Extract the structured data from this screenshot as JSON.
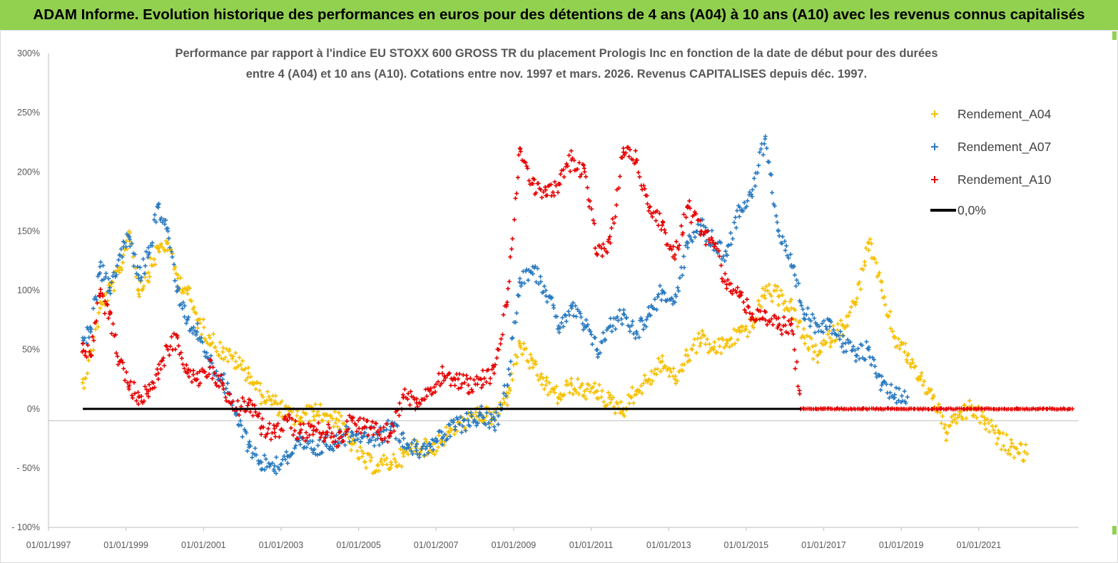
{
  "banner": {
    "title": "ADAM Informe. Evolution historique des performances en euros pour des détentions de 4 ans (A04) à 10 ans (A10) avec les revenus connus capitalisés"
  },
  "chart_data": {
    "type": "scatter",
    "title_line1": "Performance par rapport à l'indice EU STOXX 600 GROSS TR  du placement Prologis Inc en fonction de la date de début pour des durées",
    "title_line2": "entre 4 (A04) et 10 ans (A10). Cotations entre nov. 1997 et mars. 2026. Revenus CAPITALISES depuis déc. 1997.",
    "xlabel": "",
    "ylabel": "",
    "x_range": [
      "1997-01-01",
      "2023-08-01"
    ],
    "ylim": [
      -100,
      300
    ],
    "y_ticks": [
      "300%",
      "250%",
      "200%",
      "150%",
      "100%",
      "50%",
      "0%",
      "- 50%",
      "- 100%"
    ],
    "x_ticks": [
      "01/01/1997",
      "01/01/1999",
      "01/01/2001",
      "01/01/2003",
      "01/01/2005",
      "01/01/2007",
      "01/01/2009",
      "01/01/2011",
      "01/01/2013",
      "01/01/2015",
      "01/01/2017",
      "01/01/2019",
      "01/01/2021"
    ],
    "legend_position": "top-right",
    "grid": false,
    "series": [
      {
        "name": "Rendement_A04",
        "color": "#f5c000",
        "marker": "+",
        "points": [
          [
            "1997-11-20",
            22
          ],
          [
            "1998-02-01",
            45
          ],
          [
            "1998-05-01",
            85
          ],
          [
            "1998-08-01",
            100
          ],
          [
            "1998-11-01",
            115
          ],
          [
            "1999-02-01",
            150
          ],
          [
            "1999-05-01",
            100
          ],
          [
            "1999-08-01",
            115
          ],
          [
            "1999-11-01",
            135
          ],
          [
            "2000-02-01",
            140
          ],
          [
            "2000-05-01",
            110
          ],
          [
            "2000-08-01",
            100
          ],
          [
            "2000-11-01",
            75
          ],
          [
            "2001-03-01",
            60
          ],
          [
            "2001-07-01",
            48
          ],
          [
            "2001-11-01",
            40
          ],
          [
            "2002-03-01",
            30
          ],
          [
            "2002-07-01",
            12
          ],
          [
            "2002-11-01",
            5
          ],
          [
            "2003-03-01",
            -5
          ],
          [
            "2003-07-01",
            -8
          ],
          [
            "2003-11-01",
            -2
          ],
          [
            "2004-03-01",
            -5
          ],
          [
            "2004-07-01",
            -10
          ],
          [
            "2004-11-01",
            -30
          ],
          [
            "2005-03-01",
            -45
          ],
          [
            "2005-07-01",
            -48
          ],
          [
            "2005-11-01",
            -45
          ],
          [
            "2006-03-01",
            -40
          ],
          [
            "2006-07-01",
            -30
          ],
          [
            "2006-11-01",
            -35
          ],
          [
            "2007-03-01",
            -25
          ],
          [
            "2007-07-01",
            -15
          ],
          [
            "2007-11-01",
            -10
          ],
          [
            "2008-03-01",
            -5
          ],
          [
            "2008-07-01",
            -8
          ],
          [
            "2008-11-01",
            10
          ],
          [
            "2009-03-01",
            55
          ],
          [
            "2009-07-01",
            35
          ],
          [
            "2009-11-01",
            20
          ],
          [
            "2010-03-01",
            10
          ],
          [
            "2010-07-01",
            20
          ],
          [
            "2010-11-01",
            15
          ],
          [
            "2011-03-01",
            15
          ],
          [
            "2011-07-01",
            5
          ],
          [
            "2011-11-01",
            0
          ],
          [
            "2012-03-01",
            15
          ],
          [
            "2012-07-01",
            25
          ],
          [
            "2012-11-01",
            40
          ],
          [
            "2013-03-01",
            25
          ],
          [
            "2013-07-01",
            45
          ],
          [
            "2013-11-01",
            60
          ],
          [
            "2014-03-01",
            50
          ],
          [
            "2014-07-01",
            55
          ],
          [
            "2014-11-01",
            65
          ],
          [
            "2015-03-01",
            70
          ],
          [
            "2015-07-01",
            100
          ],
          [
            "2015-11-01",
            95
          ],
          [
            "2016-03-01",
            85
          ],
          [
            "2016-07-01",
            60
          ],
          [
            "2016-11-01",
            45
          ],
          [
            "2017-03-01",
            60
          ],
          [
            "2017-07-01",
            70
          ],
          [
            "2017-11-01",
            90
          ],
          [
            "2018-03-01",
            140
          ],
          [
            "2018-07-01",
            100
          ],
          [
            "2018-11-01",
            60
          ],
          [
            "2019-03-01",
            45
          ],
          [
            "2019-07-01",
            25
          ],
          [
            "2019-11-01",
            10
          ],
          [
            "2020-03-01",
            -20
          ],
          [
            "2020-07-01",
            -5
          ],
          [
            "2020-11-01",
            0
          ],
          [
            "2021-03-01",
            -10
          ],
          [
            "2021-07-01",
            -25
          ],
          [
            "2021-11-01",
            -32
          ],
          [
            "2022-04-01",
            -38
          ]
        ]
      },
      {
        "name": "Rendement_A07",
        "color": "#2a7ac0",
        "marker": "+",
        "points": [
          [
            "1997-11-20",
            60
          ],
          [
            "1998-02-01",
            65
          ],
          [
            "1998-05-01",
            120
          ],
          [
            "1998-08-01",
            100
          ],
          [
            "1998-11-01",
            130
          ],
          [
            "1999-02-01",
            145
          ],
          [
            "1999-05-01",
            110
          ],
          [
            "1999-08-01",
            130
          ],
          [
            "1999-11-01",
            170
          ],
          [
            "2000-02-01",
            150
          ],
          [
            "2000-05-01",
            100
          ],
          [
            "2000-08-01",
            75
          ],
          [
            "2000-11-01",
            65
          ],
          [
            "2001-03-01",
            40
          ],
          [
            "2001-07-01",
            25
          ],
          [
            "2001-11-01",
            -5
          ],
          [
            "2002-03-01",
            -30
          ],
          [
            "2002-07-01",
            -45
          ],
          [
            "2002-11-01",
            -48
          ],
          [
            "2003-03-01",
            -40
          ],
          [
            "2003-07-01",
            -30
          ],
          [
            "2003-11-01",
            -35
          ],
          [
            "2004-03-01",
            -30
          ],
          [
            "2004-07-01",
            -25
          ],
          [
            "2004-11-01",
            -20
          ],
          [
            "2005-03-01",
            -20
          ],
          [
            "2005-07-01",
            -25
          ],
          [
            "2005-11-01",
            -15
          ],
          [
            "2006-03-01",
            -25
          ],
          [
            "2006-07-01",
            -35
          ],
          [
            "2006-11-01",
            -30
          ],
          [
            "2007-03-01",
            -25
          ],
          [
            "2007-07-01",
            -15
          ],
          [
            "2007-11-01",
            -10
          ],
          [
            "2008-03-01",
            -5
          ],
          [
            "2008-07-01",
            -15
          ],
          [
            "2008-11-01",
            20
          ],
          [
            "2009-03-01",
            110
          ],
          [
            "2009-07-01",
            120
          ],
          [
            "2009-11-01",
            100
          ],
          [
            "2010-03-01",
            70
          ],
          [
            "2010-07-01",
            85
          ],
          [
            "2010-11-01",
            70
          ],
          [
            "2011-03-01",
            50
          ],
          [
            "2011-07-01",
            70
          ],
          [
            "2011-11-01",
            80
          ],
          [
            "2012-03-01",
            65
          ],
          [
            "2012-07-01",
            80
          ],
          [
            "2012-11-01",
            100
          ],
          [
            "2013-03-01",
            90
          ],
          [
            "2013-07-01",
            140
          ],
          [
            "2013-11-01",
            155
          ],
          [
            "2014-03-01",
            140
          ],
          [
            "2014-07-01",
            130
          ],
          [
            "2014-11-01",
            170
          ],
          [
            "2015-03-01",
            185
          ],
          [
            "2015-07-01",
            230
          ],
          [
            "2015-11-01",
            150
          ],
          [
            "2016-03-01",
            120
          ],
          [
            "2016-07-01",
            80
          ],
          [
            "2016-11-01",
            70
          ],
          [
            "2017-03-01",
            75
          ],
          [
            "2017-07-01",
            55
          ],
          [
            "2017-11-01",
            45
          ],
          [
            "2018-03-01",
            50
          ],
          [
            "2018-07-01",
            20
          ],
          [
            "2018-11-01",
            12
          ],
          [
            "2019-03-01",
            10
          ]
        ]
      },
      {
        "name": "Rendement_A10",
        "color": "#e60000",
        "marker": "+",
        "points": [
          [
            "1997-11-20",
            55
          ],
          [
            "1998-02-01",
            45
          ],
          [
            "1998-05-01",
            95
          ],
          [
            "1998-08-01",
            80
          ],
          [
            "1998-11-01",
            40
          ],
          [
            "1999-02-01",
            20
          ],
          [
            "1999-05-01",
            10
          ],
          [
            "1999-08-01",
            15
          ],
          [
            "1999-11-01",
            30
          ],
          [
            "2000-02-01",
            50
          ],
          [
            "2000-05-01",
            60
          ],
          [
            "2000-08-01",
            30
          ],
          [
            "2000-11-01",
            25
          ],
          [
            "2001-03-01",
            35
          ],
          [
            "2001-07-01",
            20
          ],
          [
            "2001-11-01",
            0
          ],
          [
            "2002-03-01",
            5
          ],
          [
            "2002-07-01",
            -15
          ],
          [
            "2002-11-01",
            -20
          ],
          [
            "2003-03-01",
            -10
          ],
          [
            "2003-07-01",
            -20
          ],
          [
            "2003-11-01",
            -18
          ],
          [
            "2004-03-01",
            -20
          ],
          [
            "2004-07-01",
            -25
          ],
          [
            "2004-11-01",
            -10
          ],
          [
            "2005-03-01",
            -15
          ],
          [
            "2005-07-01",
            -20
          ],
          [
            "2005-11-01",
            -20
          ],
          [
            "2006-03-01",
            10
          ],
          [
            "2006-07-01",
            5
          ],
          [
            "2006-11-01",
            15
          ],
          [
            "2007-03-01",
            30
          ],
          [
            "2007-07-01",
            25
          ],
          [
            "2007-11-01",
            20
          ],
          [
            "2008-03-01",
            25
          ],
          [
            "2008-07-01",
            30
          ],
          [
            "2008-11-01",
            90
          ],
          [
            "2009-03-01",
            220
          ],
          [
            "2009-07-01",
            190
          ],
          [
            "2009-11-01",
            180
          ],
          [
            "2010-03-01",
            190
          ],
          [
            "2010-07-01",
            210
          ],
          [
            "2010-11-01",
            200
          ],
          [
            "2011-03-01",
            130
          ],
          [
            "2011-07-01",
            140
          ],
          [
            "2011-11-01",
            220
          ],
          [
            "2012-03-01",
            210
          ],
          [
            "2012-07-01",
            170
          ],
          [
            "2012-11-01",
            155
          ],
          [
            "2013-03-01",
            130
          ],
          [
            "2013-07-01",
            170
          ],
          [
            "2013-11-01",
            150
          ],
          [
            "2014-03-01",
            140
          ],
          [
            "2014-07-01",
            105
          ],
          [
            "2014-11-01",
            95
          ],
          [
            "2015-03-01",
            80
          ],
          [
            "2015-07-01",
            75
          ],
          [
            "2015-11-01",
            70
          ],
          [
            "2016-03-01",
            72
          ],
          [
            "2016-06-01",
            0
          ],
          [
            "2017-01-01",
            0
          ],
          [
            "2018-01-01",
            0
          ],
          [
            "2019-01-01",
            0
          ],
          [
            "2020-01-01",
            0
          ],
          [
            "2021-01-01",
            0
          ],
          [
            "2022-01-01",
            0
          ],
          [
            "2023-06-01",
            0
          ]
        ]
      }
    ],
    "zero_line": {
      "name": "0,0%",
      "color": "#000000",
      "y": 0
    }
  }
}
